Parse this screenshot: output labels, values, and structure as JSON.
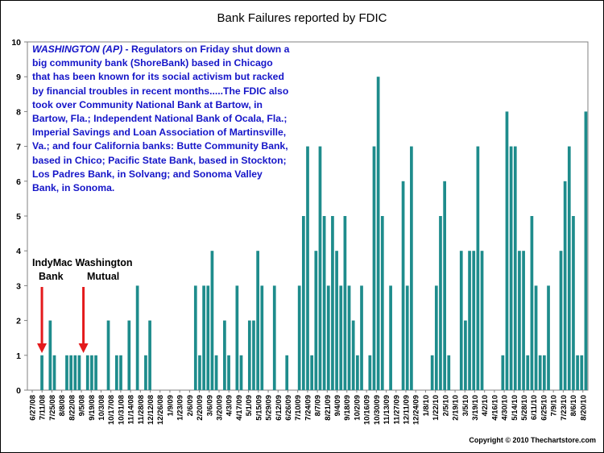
{
  "chart_data": {
    "type": "bar",
    "title": "Bank Failures reported by FDIC",
    "xlabel": "",
    "ylabel": "",
    "ylim": [
      0,
      10
    ],
    "yticks": [
      0,
      1,
      2,
      3,
      4,
      5,
      6,
      7,
      8,
      9,
      10
    ],
    "bar_color": "#1e8c8c",
    "grid": false,
    "x_tick_labels": [
      "6/27/08",
      "7/11/08",
      "7/25/08",
      "8/8/08",
      "8/22/08",
      "9/5/08",
      "9/19/08",
      "10/3/08",
      "10/17/08",
      "10/31/08",
      "11/14/08",
      "11/28/08",
      "12/12/08",
      "12/26/08",
      "1/9/09",
      "1/23/09",
      "2/6/09",
      "2/20/09",
      "3/6/09",
      "3/20/09",
      "4/3/09",
      "4/17/09",
      "5/1/09",
      "5/15/09",
      "5/29/09",
      "6/12/09",
      "6/26/09",
      "7/10/09",
      "7/24/09",
      "8/7/09",
      "8/21/09",
      "9/4/09",
      "9/18/09",
      "10/2/09",
      "10/16/09",
      "10/30/09",
      "11/13/09",
      "11/27/09",
      "12/11/09",
      "12/24/09",
      "1/8/10",
      "1/22/10",
      "2/5/10",
      "2/19/10",
      "3/5/10",
      "3/19/10",
      "4/2/10",
      "4/16/10",
      "4/30/10",
      "5/14/10",
      "5/28/10",
      "6/11/10",
      "6/25/10",
      "7/9/10",
      "7/23/10",
      "8/6/10",
      "8/20/10"
    ],
    "values": [
      0,
      0,
      0,
      1,
      0,
      2,
      1,
      0,
      0,
      1,
      1,
      1,
      1,
      0,
      1,
      1,
      1,
      0,
      0,
      2,
      0,
      1,
      1,
      0,
      2,
      0,
      3,
      0,
      1,
      2,
      0,
      0,
      0,
      0,
      0,
      0,
      0,
      0,
      0,
      0,
      3,
      1,
      3,
      3,
      4,
      1,
      0,
      2,
      1,
      0,
      3,
      1,
      0,
      2,
      2,
      4,
      3,
      0,
      0,
      3,
      0,
      0,
      1,
      0,
      0,
      3,
      5,
      7,
      1,
      4,
      7,
      5,
      3,
      5,
      4,
      3,
      5,
      3,
      2,
      1,
      3,
      0,
      1,
      7,
      9,
      5,
      0,
      3,
      0,
      0,
      6,
      3,
      7,
      0,
      0,
      0,
      0,
      1,
      3,
      5,
      6,
      1,
      0,
      0,
      4,
      2,
      4,
      4,
      7,
      4,
      0,
      0,
      0,
      0,
      1,
      8,
      7,
      7,
      4,
      4,
      1,
      5,
      3,
      1,
      1,
      3,
      0,
      0,
      4,
      6,
      7,
      5,
      1,
      1,
      8
    ],
    "annotations": [
      {
        "label_line1": "IndyMac",
        "label_line2": "Bank",
        "bar_index": 3
      },
      {
        "label_line1": "Washington",
        "label_line2": "Mutual",
        "bar_index": 13
      }
    ],
    "arrow_color": "#e41a1c"
  },
  "news": {
    "lead": "WASHINGTON (AP)",
    "body": " - Regulators on Friday shut down a big community bank (ShoreBank) based in Chicago that has been known for its social activism but racked by financial troubles in recent months.....The FDIC also took over Community National Bank at Bartow, in Bartow, Fla.; Independent National Bank of Ocala, Fla.; Imperial Savings and Loan Association of Martinsville, Va.; and four California banks: Butte Community Bank, based in Chico; Pacific State Bank, based in Stockton; Los Padres Bank, in Solvang; and Sonoma Valley Bank, in Sonoma."
  },
  "copyright": "Copyright © 2010 Thechartstore.com"
}
